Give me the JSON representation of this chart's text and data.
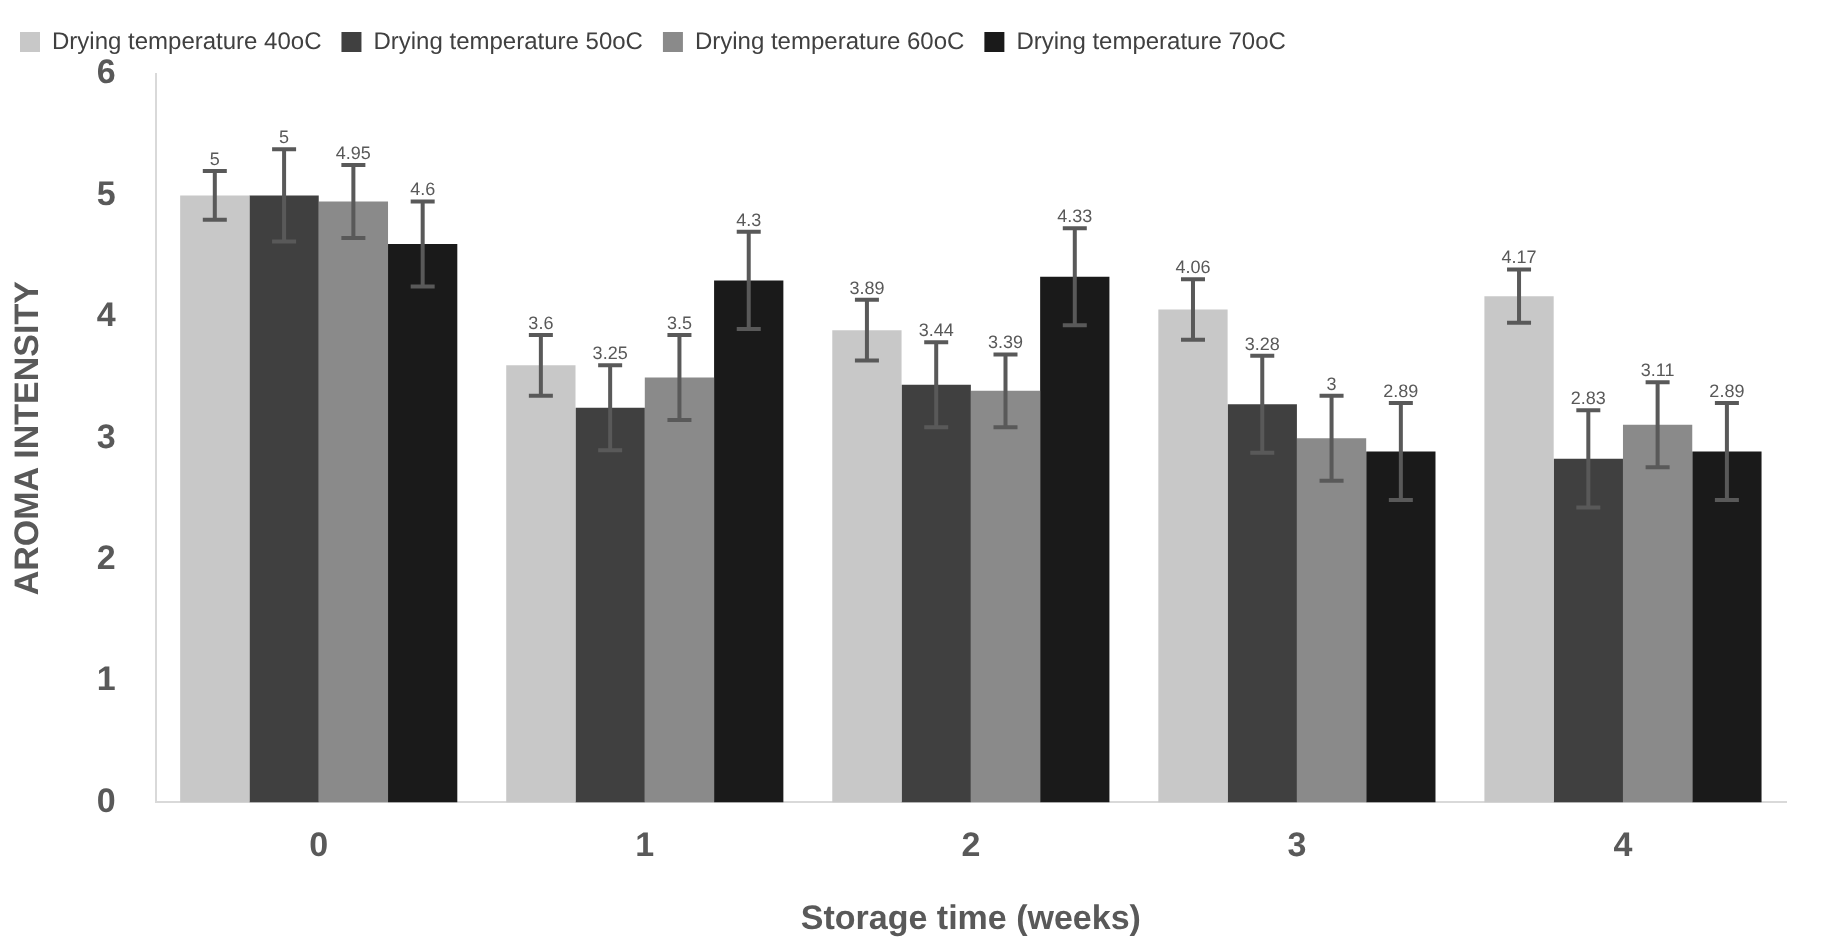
{
  "chart_data": {
    "type": "bar",
    "xlabel": "Storage time (weeks)",
    "ylabel": "AROMA INTENSITY",
    "categories": [
      "0",
      "1",
      "2",
      "3",
      "4"
    ],
    "series": [
      {
        "name": "Drying temperature 40oC",
        "color": "#c8c8c8",
        "values": [
          5,
          3.6,
          3.89,
          4.06,
          4.17
        ],
        "errors": [
          0.2,
          0.25,
          0.25,
          0.25,
          0.22
        ]
      },
      {
        "name": "Drying temperature 50oC",
        "color": "#404040",
        "values": [
          5,
          3.25,
          3.44,
          3.28,
          2.83
        ],
        "errors": [
          0.38,
          0.35,
          0.35,
          0.4,
          0.4
        ]
      },
      {
        "name": "Drying temperature 60oC",
        "color": "#8a8a8a",
        "values": [
          4.95,
          3.5,
          3.39,
          3,
          3.11
        ],
        "errors": [
          0.3,
          0.35,
          0.3,
          0.35,
          0.35
        ]
      },
      {
        "name": "Drying temperature 70oC",
        "color": "#1a1a1a",
        "values": [
          4.6,
          4.3,
          4.33,
          2.89,
          2.89
        ],
        "errors": [
          0.35,
          0.4,
          0.4,
          0.4,
          0.4
        ]
      }
    ],
    "ylim": [
      0,
      6
    ],
    "yticks": [
      0,
      1,
      2,
      3,
      4,
      5,
      6
    ],
    "grid": false,
    "legend": "top",
    "data_labels": true
  }
}
